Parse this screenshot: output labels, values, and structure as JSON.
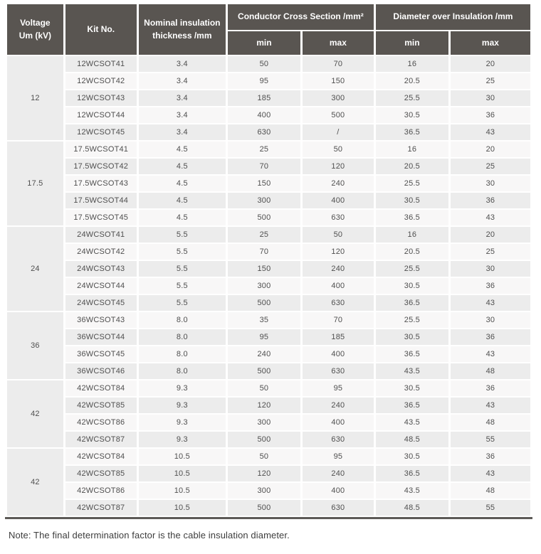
{
  "table": {
    "headers": {
      "voltage": "Voltage\nUm (kV)",
      "kit_no": "Kit No.",
      "nominal_thickness": "Nominal insulation\nthickness /mm",
      "conductor_cross_section": "Conductor Cross Section /mm²",
      "diameter_over_insulation": "Diameter over Insulation /mm",
      "min": "min",
      "max": "max"
    },
    "groups": [
      {
        "voltage": "12",
        "rows": [
          {
            "kit": "12WCSOT41",
            "thickness": "3.4",
            "ccs_min": "50",
            "ccs_max": "70",
            "dia_min": "16",
            "dia_max": "20"
          },
          {
            "kit": "12WCSOT42",
            "thickness": "3.4",
            "ccs_min": "95",
            "ccs_max": "150",
            "dia_min": "20.5",
            "dia_max": "25"
          },
          {
            "kit": "12WCSOT43",
            "thickness": "3.4",
            "ccs_min": "185",
            "ccs_max": "300",
            "dia_min": "25.5",
            "dia_max": "30"
          },
          {
            "kit": "12WCSOT44",
            "thickness": "3.4",
            "ccs_min": "400",
            "ccs_max": "500",
            "dia_min": "30.5",
            "dia_max": "36"
          },
          {
            "kit": "12WCSOT45",
            "thickness": "3.4",
            "ccs_min": "630",
            "ccs_max": "/",
            "dia_min": "36.5",
            "dia_max": "43"
          }
        ]
      },
      {
        "voltage": "17.5",
        "rows": [
          {
            "kit": "17.5WCSOT41",
            "thickness": "4.5",
            "ccs_min": "25",
            "ccs_max": "50",
            "dia_min": "16",
            "dia_max": "20"
          },
          {
            "kit": "17.5WCSOT42",
            "thickness": "4.5",
            "ccs_min": "70",
            "ccs_max": "120",
            "dia_min": "20.5",
            "dia_max": "25"
          },
          {
            "kit": "17.5WCSOT43",
            "thickness": "4.5",
            "ccs_min": "150",
            "ccs_max": "240",
            "dia_min": "25.5",
            "dia_max": "30"
          },
          {
            "kit": "17.5WCSOT44",
            "thickness": "4.5",
            "ccs_min": "300",
            "ccs_max": "400",
            "dia_min": "30.5",
            "dia_max": "36"
          },
          {
            "kit": "17.5WCSOT45",
            "thickness": "4.5",
            "ccs_min": "500",
            "ccs_max": "630",
            "dia_min": "36.5",
            "dia_max": "43"
          }
        ]
      },
      {
        "voltage": "24",
        "rows": [
          {
            "kit": "24WCSOT41",
            "thickness": "5.5",
            "ccs_min": "25",
            "ccs_max": "50",
            "dia_min": "16",
            "dia_max": "20"
          },
          {
            "kit": "24WCSOT42",
            "thickness": "5.5",
            "ccs_min": "70",
            "ccs_max": "120",
            "dia_min": "20.5",
            "dia_max": "25"
          },
          {
            "kit": "24WCSOT43",
            "thickness": "5.5",
            "ccs_min": "150",
            "ccs_max": "240",
            "dia_min": "25.5",
            "dia_max": "30"
          },
          {
            "kit": "24WCSOT44",
            "thickness": "5.5",
            "ccs_min": "300",
            "ccs_max": "400",
            "dia_min": "30.5",
            "dia_max": "36"
          },
          {
            "kit": "24WCSOT45",
            "thickness": "5.5",
            "ccs_min": "500",
            "ccs_max": "630",
            "dia_min": "36.5",
            "dia_max": "43"
          }
        ]
      },
      {
        "voltage": "36",
        "rows": [
          {
            "kit": "36WCSOT43",
            "thickness": "8.0",
            "ccs_min": "35",
            "ccs_max": "70",
            "dia_min": "25.5",
            "dia_max": "30"
          },
          {
            "kit": "36WCSOT44",
            "thickness": "8.0",
            "ccs_min": "95",
            "ccs_max": "185",
            "dia_min": "30.5",
            "dia_max": "36"
          },
          {
            "kit": "36WCSOT45",
            "thickness": "8.0",
            "ccs_min": "240",
            "ccs_max": "400",
            "dia_min": "36.5",
            "dia_max": "43"
          },
          {
            "kit": "36WCSOT46",
            "thickness": "8.0",
            "ccs_min": "500",
            "ccs_max": "630",
            "dia_min": "43.5",
            "dia_max": "48"
          }
        ]
      },
      {
        "voltage": "42",
        "rows": [
          {
            "kit": "42WCSOT84",
            "thickness": "9.3",
            "ccs_min": "50",
            "ccs_max": "95",
            "dia_min": "30.5",
            "dia_max": "36"
          },
          {
            "kit": "42WCSOT85",
            "thickness": "9.3",
            "ccs_min": "120",
            "ccs_max": "240",
            "dia_min": "36.5",
            "dia_max": "43"
          },
          {
            "kit": "42WCSOT86",
            "thickness": "9.3",
            "ccs_min": "300",
            "ccs_max": "400",
            "dia_min": "43.5",
            "dia_max": "48"
          },
          {
            "kit": "42WCSOT87",
            "thickness": "9.3",
            "ccs_min": "500",
            "ccs_max": "630",
            "dia_min": "48.5",
            "dia_max": "55"
          }
        ]
      },
      {
        "voltage": "42",
        "rows": [
          {
            "kit": "42WCSOT84",
            "thickness": "10.5",
            "ccs_min": "50",
            "ccs_max": "95",
            "dia_min": "30.5",
            "dia_max": "36"
          },
          {
            "kit": "42WCSOT85",
            "thickness": "10.5",
            "ccs_min": "120",
            "ccs_max": "240",
            "dia_min": "36.5",
            "dia_max": "43"
          },
          {
            "kit": "42WCSOT86",
            "thickness": "10.5",
            "ccs_min": "300",
            "ccs_max": "400",
            "dia_min": "43.5",
            "dia_max": "48"
          },
          {
            "kit": "42WCSOT87",
            "thickness": "10.5",
            "ccs_min": "500",
            "ccs_max": "630",
            "dia_min": "48.5",
            "dia_max": "55"
          }
        ]
      }
    ]
  },
  "note": "Note: The final determination factor is the cable insulation diameter.",
  "colors": {
    "header_bg": "#595551",
    "header_text": "#ffffff",
    "row_shade_a": "#ececec",
    "row_shade_b": "#f8f7f7",
    "bottom_rule": "#5d5a57",
    "cell_text": "#4f4f4f"
  }
}
